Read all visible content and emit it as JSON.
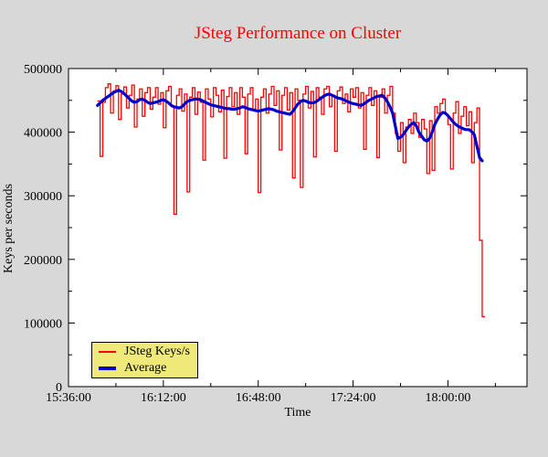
{
  "window": {
    "background_color": "#d8d8d8"
  },
  "chart_data": {
    "type": "line",
    "title": "JSteg Performance on Cluster",
    "title_color": "#ff0000",
    "xlabel": "Time",
    "ylabel": "Keys per seconds",
    "plot_background": "#ffffff",
    "border_color": "#000000",
    "grid": false,
    "x_axis": {
      "start_time_label": "15:36:00",
      "min_minutes": 0,
      "max_minutes": 174,
      "major_tick_minutes": [
        0,
        36,
        72,
        108,
        144
      ],
      "tick_labels": [
        "15:36:00",
        "16:12:00",
        "16:48:00",
        "17:24:00",
        "18:00:00"
      ],
      "minor_tick_minutes": [
        18,
        54,
        90,
        126,
        162
      ]
    },
    "y_axis": {
      "min": 0,
      "max": 500000,
      "major_tick_values": [
        0,
        100000,
        200000,
        300000,
        400000,
        500000
      ],
      "tick_labels": [
        "0",
        "100000",
        "200000",
        "300000",
        "400000",
        "500000"
      ],
      "minor_tick_values": [
        50000,
        150000,
        250000,
        350000,
        450000
      ]
    },
    "legend": {
      "position": "bottom-left",
      "background": "#efe97a",
      "border": "#000000",
      "entries": [
        {
          "label": "JSteg Keys/s",
          "color": "#ff0000",
          "line_width": 2
        },
        {
          "label": "Average",
          "color": "#0000cc",
          "line_width": 4
        }
      ]
    },
    "series": [
      {
        "name": "JSteg Keys/s",
        "color": "#ff0000",
        "style": "steps",
        "line_width": 1.3,
        "start_minute": 11,
        "start_time_of_day": "15:47:00",
        "sample_interval_minutes": 1,
        "values": [
          449000,
          362000,
          447000,
          470000,
          476000,
          430000,
          465000,
          473000,
          420000,
          460000,
          471000,
          438000,
          458000,
          474000,
          408000,
          452000,
          468000,
          425000,
          462000,
          470000,
          436000,
          455000,
          470000,
          444000,
          462000,
          407000,
          465000,
          472000,
          440000,
          271000,
          458000,
          468000,
          433000,
          460000,
          306000,
          455000,
          470000,
          428000,
          463000,
          447000,
          356000,
          468000,
          452000,
          424000,
          470000,
          458000,
          432000,
          466000,
          359000,
          456000,
          470000,
          440000,
          462000,
          428000,
          470000,
          455000,
          366000,
          460000,
          470000,
          436000,
          452000,
          305000,
          455000,
          468000,
          430000,
          460000,
          472000,
          442000,
          465000,
          372000,
          458000,
          470000,
          435000,
          462000,
          328000,
          468000,
          450000,
          313000,
          460000,
          472000,
          438000,
          464000,
          361000,
          470000,
          455000,
          428000,
          468000,
          472000,
          440000,
          458000,
          370000,
          465000,
          471000,
          445000,
          460000,
          432000,
          468000,
          455000,
          470000,
          438000,
          462000,
          373000,
          458000,
          470000,
          442000,
          465000,
          360000,
          455000,
          468000,
          430000,
          458000,
          472000,
          430000,
          398000,
          370000,
          415000,
          352000,
          408000,
          420000,
          398000,
          430000,
          415000,
          392000,
          420000,
          405000,
          335000,
          418000,
          340000,
          440000,
          430000,
          445000,
          452000,
          428000,
          412000,
          342000,
          430000,
          448000,
          398000,
          425000,
          440000,
          410000,
          432000,
          352000,
          415000,
          438000,
          230000,
          110000
        ]
      },
      {
        "name": "Average",
        "color": "#0000cc",
        "style": "line",
        "line_width": 3.2,
        "start_minute": 11,
        "start_time_of_day": "15:47:00",
        "sample_interval_minutes": 1,
        "values": [
          442000,
          446000,
          450000,
          453000,
          456000,
          459000,
          462000,
          464000,
          466000,
          464000,
          461000,
          457000,
          453000,
          449000,
          447000,
          448000,
          451000,
          452000,
          450000,
          447000,
          445000,
          446000,
          447000,
          448000,
          450000,
          451000,
          449000,
          446000,
          442000,
          440000,
          439000,
          438000,
          440000,
          444000,
          448000,
          450000,
          451000,
          452000,
          452000,
          451000,
          449000,
          447000,
          445000,
          443000,
          442000,
          441000,
          440000,
          439000,
          438000,
          437000,
          437000,
          436000,
          436000,
          437000,
          438000,
          440000,
          439000,
          437000,
          436000,
          435000,
          434000,
          433000,
          434000,
          435000,
          436000,
          437000,
          436000,
          435000,
          433000,
          432000,
          431000,
          430000,
          429000,
          428000,
          432000,
          438000,
          444000,
          448000,
          450000,
          449000,
          447000,
          446000,
          446000,
          448000,
          451000,
          454000,
          457000,
          459000,
          460000,
          458000,
          456000,
          454000,
          453000,
          452000,
          450000,
          448000,
          446000,
          445000,
          444000,
          443000,
          442000,
          444000,
          447000,
          450000,
          452000,
          454000,
          456000,
          457000,
          458000,
          454000,
          448000,
          440000,
          430000,
          410000,
          390000,
          392000,
          396000,
          402000,
          408000,
          412000,
          415000,
          410000,
          400000,
          394000,
          388000,
          386000,
          390000,
          400000,
          412000,
          420000,
          427000,
          431000,
          430000,
          426000,
          421000,
          416000,
          412000,
          409000,
          407000,
          405000,
          404000,
          404000,
          401000,
          396000,
          378000,
          360000,
          355000
        ]
      }
    ]
  }
}
